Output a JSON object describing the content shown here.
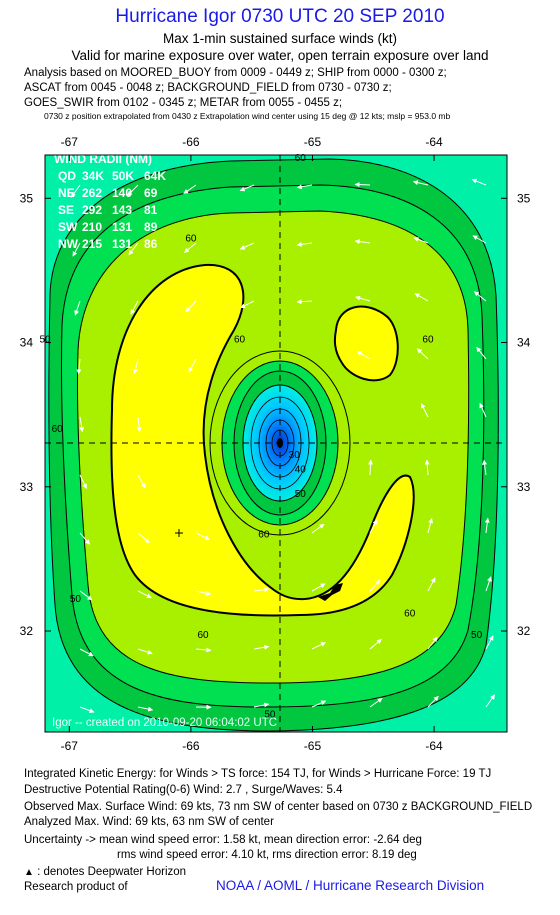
{
  "header": {
    "title": "Hurricane Igor 0730 UTC 20 SEP 2010",
    "subtitle1": "Max 1-min sustained surface winds (kt)",
    "subtitle2": "Valid for marine exposure over water, open terrain exposure over land",
    "sources": [
      "Analysis based on MOORED_BUOY from 0009 - 0449 z; SHIP from 0000 - 0300 z;",
      "ASCAT from 0045 - 0048 z; BACKGROUND_FIELD from 0730 - 0730 z;",
      "GOES_SWIR from 0102 - 0345 z; METAR from 0055 - 0455 z;"
    ],
    "position_note": "0730 z position extrapolated from 0430 z Extrapolation wind center using 15 deg @ 12 kts; mslp = 953.0 mb"
  },
  "colors": {
    "title_blue": "#1a1ae6",
    "band_50_60": "#00e050",
    "band_40_50": "#00c640",
    "band_low": "#00e8c0",
    "band_60_64": "#a8f000",
    "band_64_plus": "#ffff00",
    "outer": "#00f0a8"
  },
  "chart_data": {
    "type": "heatmap",
    "subtype": "wind speed contour map",
    "units": "kt",
    "xlim": [
      -67.2,
      -63.4
    ],
    "ylim": [
      31.3,
      35.3
    ],
    "x_ticks": [
      "-67",
      "-66",
      "-65",
      "-64"
    ],
    "x_tick_values": [
      -67,
      -66,
      -65,
      -64
    ],
    "y_ticks": [
      "35",
      "34",
      "33",
      "32"
    ],
    "y_tick_values": [
      35,
      34,
      33,
      32
    ],
    "center": {
      "lon": -65.2,
      "lat": 33.35
    },
    "contour_labels": [
      {
        "text": "60",
        "lon": -65.1,
        "lat": 35.26
      },
      {
        "text": "60",
        "lon": -66.0,
        "lat": 34.7
      },
      {
        "text": "60",
        "lon": -65.6,
        "lat": 34.0
      },
      {
        "text": "60",
        "lon": -64.05,
        "lat": 34.0
      },
      {
        "text": "60",
        "lon": -67.1,
        "lat": 33.38
      },
      {
        "text": "60",
        "lon": -65.4,
        "lat": 32.65
      },
      {
        "text": "60",
        "lon": -64.2,
        "lat": 32.1
      },
      {
        "text": "60",
        "lon": -65.9,
        "lat": 31.95
      },
      {
        "text": "50",
        "lon": -65.1,
        "lat": 32.93
      },
      {
        "text": "50",
        "lon": -66.95,
        "lat": 32.2
      },
      {
        "text": "50",
        "lon": -63.65,
        "lat": 31.95
      },
      {
        "text": "50",
        "lon": -67.2,
        "lat": 34.0
      },
      {
        "text": "50",
        "lon": -65.35,
        "lat": 31.4
      },
      {
        "text": "40",
        "lon": -65.1,
        "lat": 33.1
      },
      {
        "text": "30",
        "lon": -65.15,
        "lat": 33.2
      }
    ],
    "wind_radii": {
      "title": "WIND RADII (NM)",
      "header": [
        "QD",
        "34K",
        "50K",
        "64K"
      ],
      "rows": [
        [
          "NE",
          "262",
          "140",
          "69"
        ],
        [
          "SE",
          "292",
          "143",
          "81"
        ],
        [
          "SW",
          "210",
          "131",
          "89"
        ],
        [
          "NW",
          "215",
          "131",
          "86"
        ]
      ]
    },
    "credit": "Igor -- created on 2010-09-20 06:04:02 UTC"
  },
  "footer": {
    "ike": "Integrated Kinetic Energy:  for Winds > TS force: 154 TJ,  for Winds > Hurricane Force: 19 TJ",
    "dpr": "Destructive Potential Rating(0-6)   Wind: 2.7 , Surge/Waves: 5.4",
    "observed": "Observed Max. Surface Wind: 69 kts, 73 nm SW of center based on 0730 z BACKGROUND_FIELD",
    "analyzed": "Analyzed Max. Wind: 69 kts, 63 nm SW of center",
    "uncertainty1": "Uncertainty -> mean wind speed error: 1.58 kt,   mean direction error:  -2.64 deg",
    "uncertainty2": "rms wind speed error: 4.10 kt,   rms direction error: 8.19 deg",
    "legend": ": denotes Deepwater Horizon",
    "research": "Research product of",
    "org": "NOAA / AOML / Hurricane Research Division"
  }
}
